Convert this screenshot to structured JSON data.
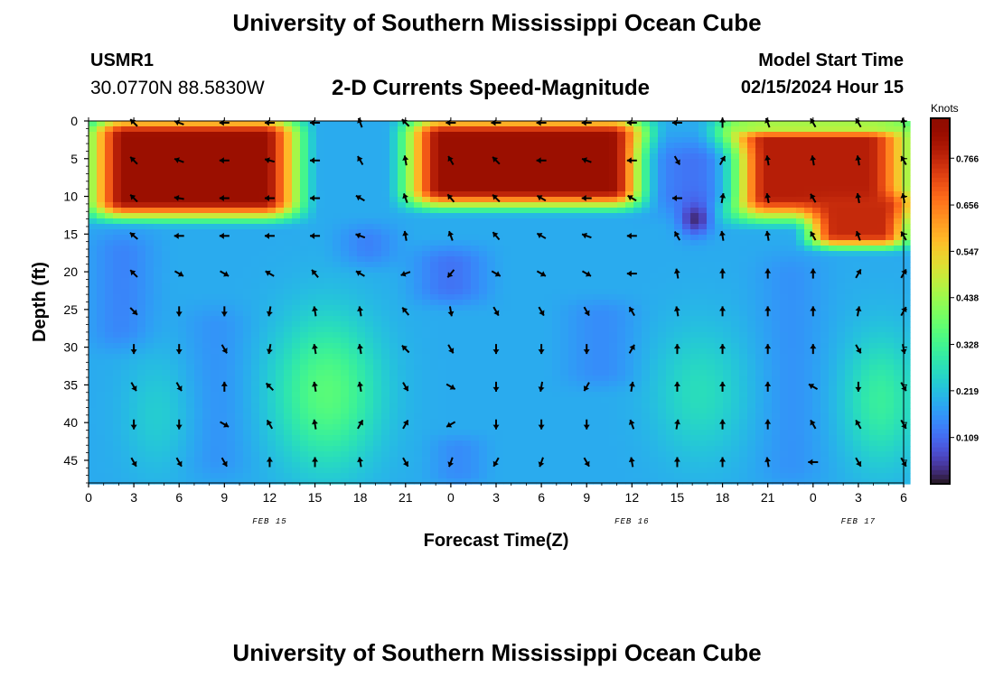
{
  "page": {
    "title_top": "University of Southern Mississippi Ocean Cube",
    "title_bottom": "University of Southern Mississippi Ocean Cube",
    "station": "USMR1",
    "coords": "30.0770N  88.5830W",
    "subtitle": "2-D Currents Speed-Magnitude",
    "model_label": "Model Start Time",
    "model_time": "02/15/2024 Hour 15"
  },
  "chart_data": {
    "type": "heatmap",
    "title": "2-D Currents Speed-Magnitude",
    "xlabel": "Forecast Time(Z)",
    "ylabel": "Depth (ft)",
    "x_tick_labels": [
      "0",
      "3",
      "6",
      "9",
      "12",
      "15",
      "18",
      "21",
      "0",
      "3",
      "6",
      "9",
      "12",
      "15",
      "18",
      "21",
      "0",
      "3",
      "6"
    ],
    "x_range_hours": [
      0,
      54
    ],
    "date_labels": [
      {
        "label": "FEB 15",
        "hour": 12
      },
      {
        "label": "FEB 16",
        "hour": 36
      },
      {
        "label": "FEB 17",
        "hour": 51
      }
    ],
    "y_ticks": [
      0,
      5,
      10,
      15,
      20,
      25,
      30,
      35,
      40,
      45
    ],
    "y_range": [
      0,
      48
    ],
    "y_inverted": true,
    "colorbar": {
      "unit": "Knots",
      "ticks": [
        "0.766",
        "0.656",
        "0.547",
        "0.438",
        "0.328",
        "0.219",
        "0.109"
      ],
      "tick_values": [
        0.766,
        0.656,
        0.547,
        0.438,
        0.328,
        0.219,
        0.109
      ],
      "range": [
        0.0,
        0.86
      ],
      "colormap": "turbo"
    },
    "speed_features": [
      {
        "t0": 0.5,
        "t1": 13.5,
        "d0": 0,
        "d1": 12.5,
        "value": 0.82,
        "edge": 2.0
      },
      {
        "t0": 21.5,
        "t1": 36.5,
        "d0": 0,
        "d1": 11,
        "value": 0.82,
        "edge": 2.0
      },
      {
        "t0": 42.5,
        "t1": 54,
        "d0": 0,
        "d1": 12.5,
        "value": 0.78,
        "edge": 2.5
      },
      {
        "t0": 48,
        "t1": 54,
        "d0": 10,
        "d1": 16.5,
        "value": 0.76,
        "edge": 1.5
      },
      {
        "t0": 37.5,
        "t1": 42.5,
        "d0": 3,
        "d1": 12,
        "value": 0.12,
        "edge": 2.5
      },
      {
        "t0": 42.5,
        "t1": 54,
        "d0": 0,
        "d1": 1.5,
        "value": 0.42,
        "edge": 1.0
      },
      {
        "t0": 1.0,
        "t1": 3.5,
        "d0": 15,
        "d1": 30,
        "value": 0.12,
        "edge": 2.5
      },
      {
        "t0": 7,
        "t1": 10,
        "d0": 25,
        "d1": 47,
        "value": 0.15,
        "edge": 2.5
      },
      {
        "t0": 17,
        "t1": 20,
        "d0": 14,
        "d1": 19,
        "value": 0.13,
        "edge": 2.0
      },
      {
        "t0": 22,
        "t1": 26,
        "d0": 17,
        "d1": 24,
        "value": 0.12,
        "edge": 2.0
      },
      {
        "t0": 32,
        "t1": 36,
        "d0": 24,
        "d1": 35,
        "value": 0.15,
        "edge": 2.0
      },
      {
        "t0": 45,
        "t1": 48,
        "d0": 18,
        "d1": 48,
        "value": 0.15,
        "edge": 2.5
      },
      {
        "t0": 23,
        "t1": 26,
        "d0": 42,
        "d1": 48,
        "value": 0.15,
        "edge": 1.5
      }
    ],
    "speed_ellipses": [
      {
        "t": 15.8,
        "d": 36,
        "rt": 4.0,
        "rd": 11.5,
        "value": 0.36
      },
      {
        "t": 40.2,
        "d": 13,
        "rt": 1.2,
        "rd": 2.5,
        "value": 0.03
      },
      {
        "t": 52.5,
        "d": 37,
        "rt": 2.8,
        "rd": 10,
        "value": 0.31
      },
      {
        "t": 40.5,
        "d": 36,
        "rt": 3.5,
        "rd": 10,
        "value": 0.27
      },
      {
        "t": 4.5,
        "d": 39,
        "rt": 2.5,
        "rd": 9,
        "value": 0.24
      }
    ],
    "background_speed": 0.19,
    "vector_depths": [
      0,
      5,
      10,
      15,
      20,
      25,
      30,
      35,
      40,
      45
    ],
    "vector_times": [
      3,
      6,
      9,
      12,
      15,
      18,
      21,
      24,
      27,
      30,
      33,
      36,
      39,
      42,
      45,
      48,
      51,
      54
    ],
    "vector_angles_deg": [
      [
        135,
        160,
        180,
        180,
        180,
        110,
        135,
        180,
        180,
        180,
        180,
        180,
        180,
        90,
        110,
        120,
        120,
        100
      ],
      [
        135,
        160,
        180,
        165,
        180,
        120,
        100,
        120,
        135,
        180,
        160,
        180,
        300,
        60,
        100,
        100,
        100,
        120
      ],
      [
        135,
        170,
        180,
        180,
        180,
        150,
        110,
        130,
        135,
        150,
        180,
        150,
        180,
        80,
        100,
        120,
        100,
        100
      ],
      [
        140,
        180,
        180,
        180,
        180,
        160,
        100,
        110,
        130,
        150,
        160,
        180,
        120,
        100,
        100,
        120,
        110,
        120
      ],
      [
        135,
        330,
        330,
        150,
        130,
        150,
        200,
        230,
        330,
        330,
        330,
        180,
        100,
        90,
        90,
        90,
        60,
        60
      ],
      [
        315,
        270,
        270,
        260,
        100,
        100,
        130,
        280,
        300,
        300,
        300,
        120,
        100,
        90,
        90,
        90,
        80,
        60
      ],
      [
        270,
        270,
        300,
        260,
        100,
        100,
        135,
        300,
        270,
        270,
        270,
        60,
        90,
        90,
        90,
        90,
        300,
        280
      ],
      [
        300,
        300,
        90,
        135,
        100,
        100,
        300,
        330,
        270,
        260,
        240,
        80,
        90,
        90,
        90,
        150,
        270,
        300
      ],
      [
        270,
        270,
        330,
        120,
        100,
        60,
        60,
        210,
        270,
        270,
        270,
        110,
        80,
        90,
        90,
        120,
        120,
        300
      ],
      [
        300,
        300,
        300,
        90,
        90,
        100,
        300,
        250,
        240,
        250,
        300,
        100,
        90,
        90,
        100,
        180,
        300,
        300
      ]
    ]
  }
}
